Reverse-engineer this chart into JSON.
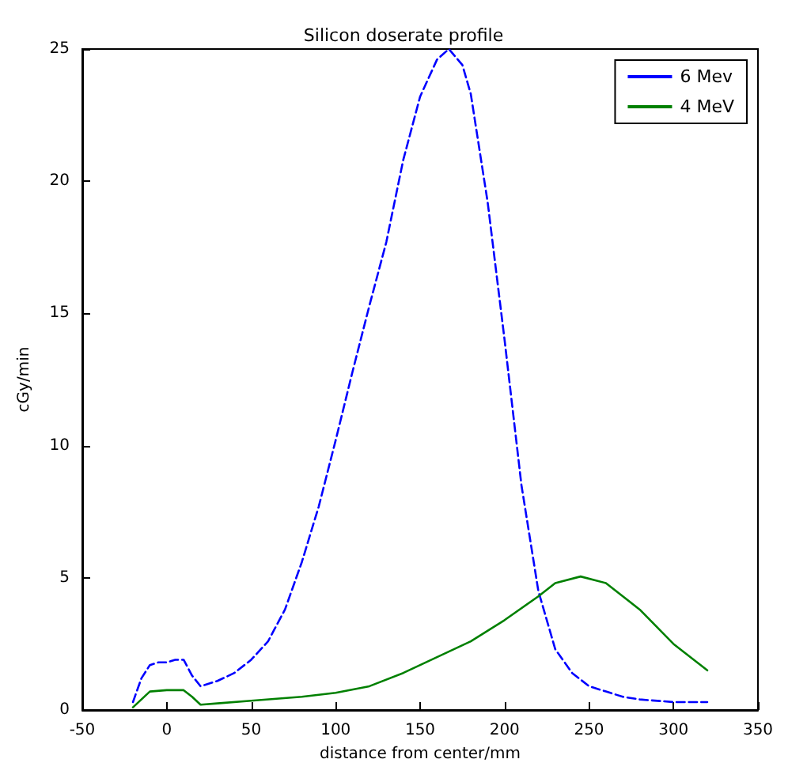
{
  "chart_data": {
    "type": "line",
    "title": "Silicon doserate profile",
    "xlabel": "distance from center/mm",
    "ylabel": "cGy/min",
    "xlim": [
      -50,
      350
    ],
    "xticks": [
      -50,
      0,
      50,
      100,
      150,
      200,
      250,
      300,
      350
    ],
    "ylim": [
      0,
      25
    ],
    "yticks": [
      0,
      5,
      10,
      15,
      20,
      25
    ],
    "grid": false,
    "legend": "top right",
    "marker": "none",
    "series": [
      {
        "name": "6 Mev",
        "color": "#0000ff",
        "line_style": "dashed",
        "x": [
          -20,
          -15,
          -10,
          -5,
          0,
          5,
          10,
          15,
          20,
          30,
          40,
          50,
          60,
          70,
          80,
          90,
          100,
          110,
          120,
          130,
          140,
          150,
          160,
          167,
          175,
          180,
          190,
          200,
          210,
          220,
          230,
          240,
          250,
          260,
          270,
          280,
          300,
          320
        ],
        "values": [
          0.3,
          1.2,
          1.7,
          1.8,
          1.8,
          1.9,
          1.9,
          1.3,
          0.9,
          1.1,
          1.4,
          1.9,
          2.6,
          3.8,
          5.6,
          7.7,
          10.2,
          12.8,
          15.3,
          17.7,
          20.8,
          23.2,
          24.6,
          25,
          24.4,
          23.3,
          19.2,
          14.0,
          8.5,
          4.5,
          2.3,
          1.4,
          0.9,
          0.7,
          0.5,
          0.4,
          0.3,
          0.3
        ]
      },
      {
        "name": "4 MeV",
        "color": "#008000",
        "line_style": "solid",
        "x": [
          -20,
          -15,
          -10,
          0,
          10,
          15,
          20,
          30,
          50,
          80,
          100,
          120,
          140,
          160,
          180,
          200,
          220,
          230,
          245,
          260,
          280,
          300,
          320
        ],
        "values": [
          0.1,
          0.4,
          0.7,
          0.75,
          0.75,
          0.5,
          0.2,
          0.25,
          0.35,
          0.5,
          0.65,
          0.9,
          1.4,
          2.0,
          2.6,
          3.4,
          4.3,
          4.8,
          5.05,
          4.8,
          3.8,
          2.5,
          1.5
        ]
      }
    ]
  }
}
